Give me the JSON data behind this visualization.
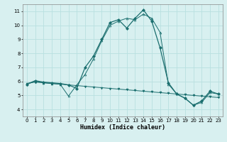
{
  "xlabel": "Humidex (Indice chaleur)",
  "bg_color": "#d8f0f0",
  "line_color": "#1a6e6e",
  "grid_color": "#b8e0e0",
  "xlim": [
    -0.5,
    23.5
  ],
  "ylim": [
    3.5,
    11.5
  ],
  "xticks": [
    0,
    1,
    2,
    3,
    4,
    5,
    6,
    7,
    8,
    9,
    10,
    11,
    12,
    13,
    14,
    15,
    16,
    17,
    18,
    19,
    20,
    21,
    22,
    23
  ],
  "yticks": [
    4,
    5,
    6,
    7,
    8,
    9,
    10,
    11
  ],
  "series_trend_x": [
    0,
    1,
    2,
    3,
    4,
    5,
    6,
    7,
    8,
    9,
    10,
    11,
    12,
    13,
    14,
    15,
    16,
    17,
    18,
    19,
    20,
    21,
    22,
    23
  ],
  "series_trend_y": [
    5.85,
    5.95,
    5.9,
    5.85,
    5.8,
    5.75,
    5.7,
    5.65,
    5.6,
    5.55,
    5.5,
    5.45,
    5.4,
    5.35,
    5.3,
    5.25,
    5.2,
    5.15,
    5.1,
    5.05,
    5.0,
    4.95,
    4.9,
    4.85
  ],
  "series_main_x": [
    0,
    1,
    2,
    3,
    4,
    5,
    6,
    7,
    8,
    9,
    10,
    11,
    12,
    13,
    14,
    15,
    16,
    17,
    18,
    19,
    20,
    21,
    22,
    23
  ],
  "series_main_y": [
    5.8,
    6.05,
    5.95,
    5.9,
    5.85,
    5.75,
    5.5,
    7.0,
    7.8,
    9.0,
    10.2,
    10.4,
    9.8,
    10.5,
    11.1,
    10.3,
    8.4,
    5.9,
    5.1,
    4.8,
    4.3,
    4.6,
    5.3,
    5.1
  ],
  "series_alt_x": [
    0,
    1,
    2,
    3,
    4,
    5,
    6,
    7,
    8,
    9,
    10,
    11,
    12,
    13,
    14,
    15,
    16,
    17,
    18,
    19,
    20,
    21,
    22,
    23
  ],
  "series_alt_y": [
    5.8,
    6.0,
    5.9,
    5.85,
    5.8,
    4.95,
    5.75,
    6.5,
    7.6,
    8.9,
    10.0,
    10.3,
    10.5,
    10.4,
    10.8,
    10.5,
    9.5,
    5.8,
    5.1,
    4.8,
    4.3,
    4.5,
    5.2,
    5.1
  ]
}
